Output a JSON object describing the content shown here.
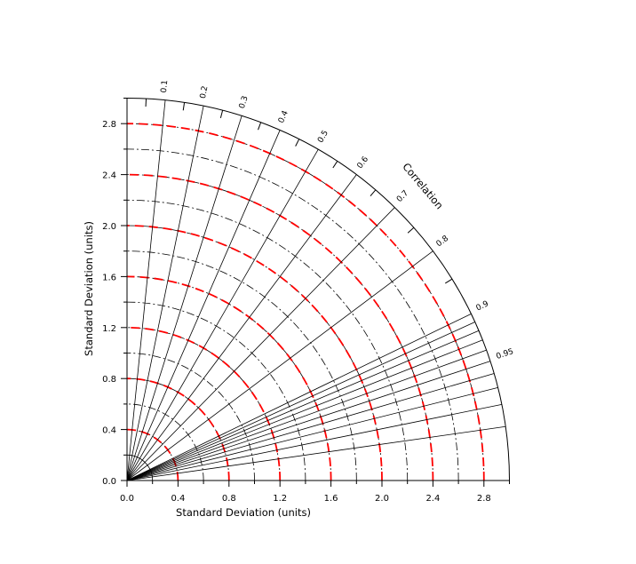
{
  "chart_data": {
    "type": "taylor-diagram",
    "xlabel": "Standard Deviation (units)",
    "ylabel": "Standard Deviation (units)",
    "corr_title": "Correlation",
    "std_range": [
      0,
      3.0
    ],
    "std_major_ticks": [
      0.0,
      0.4,
      0.8,
      1.2,
      1.6,
      2.0,
      2.4,
      2.8
    ],
    "x_tick_labels": [
      "0.0",
      "0.4",
      "0.8",
      "1.2",
      "1.6",
      "2.0",
      "2.4",
      "2.8"
    ],
    "y_tick_labels": [
      "0.0",
      "0.4",
      "0.8",
      "1.2",
      "1.6",
      "2.0",
      "2.4",
      "2.8"
    ],
    "std_arcs": [
      0.2,
      0.4,
      0.6,
      0.8,
      1.0,
      1.2,
      1.4,
      1.6,
      1.8,
      2.0,
      2.2,
      2.4,
      2.6,
      2.8,
      3.0
    ],
    "red_dashed_arcs": [
      0.4,
      0.8,
      1.2,
      1.6,
      2.0,
      2.4,
      2.8
    ],
    "correlation_lines": [
      0.1,
      0.2,
      0.3,
      0.4,
      0.5,
      0.6,
      0.7,
      0.8,
      0.9,
      0.91,
      0.92,
      0.93,
      0.94,
      0.95,
      0.96,
      0.97,
      0.98,
      0.99
    ],
    "correlation_labels": [
      {
        "value": 0.1,
        "text": "0.1"
      },
      {
        "value": 0.2,
        "text": "0.2"
      },
      {
        "value": 0.3,
        "text": "0.3"
      },
      {
        "value": 0.4,
        "text": "0.4"
      },
      {
        "value": 0.5,
        "text": "0.5"
      },
      {
        "value": 0.6,
        "text": "0.6"
      },
      {
        "value": 0.7,
        "text": "0.7"
      },
      {
        "value": 0.8,
        "text": "0.8"
      },
      {
        "value": 0.9,
        "text": "0.9"
      },
      {
        "value": 0.95,
        "text": "0.95"
      }
    ],
    "correlation_minor_ticks": [
      0.05,
      0.15,
      0.25,
      0.35,
      0.45,
      0.55,
      0.65,
      0.75,
      0.85
    ],
    "colors": {
      "axes": "#000000",
      "reference_arcs": "#ff0000"
    }
  }
}
